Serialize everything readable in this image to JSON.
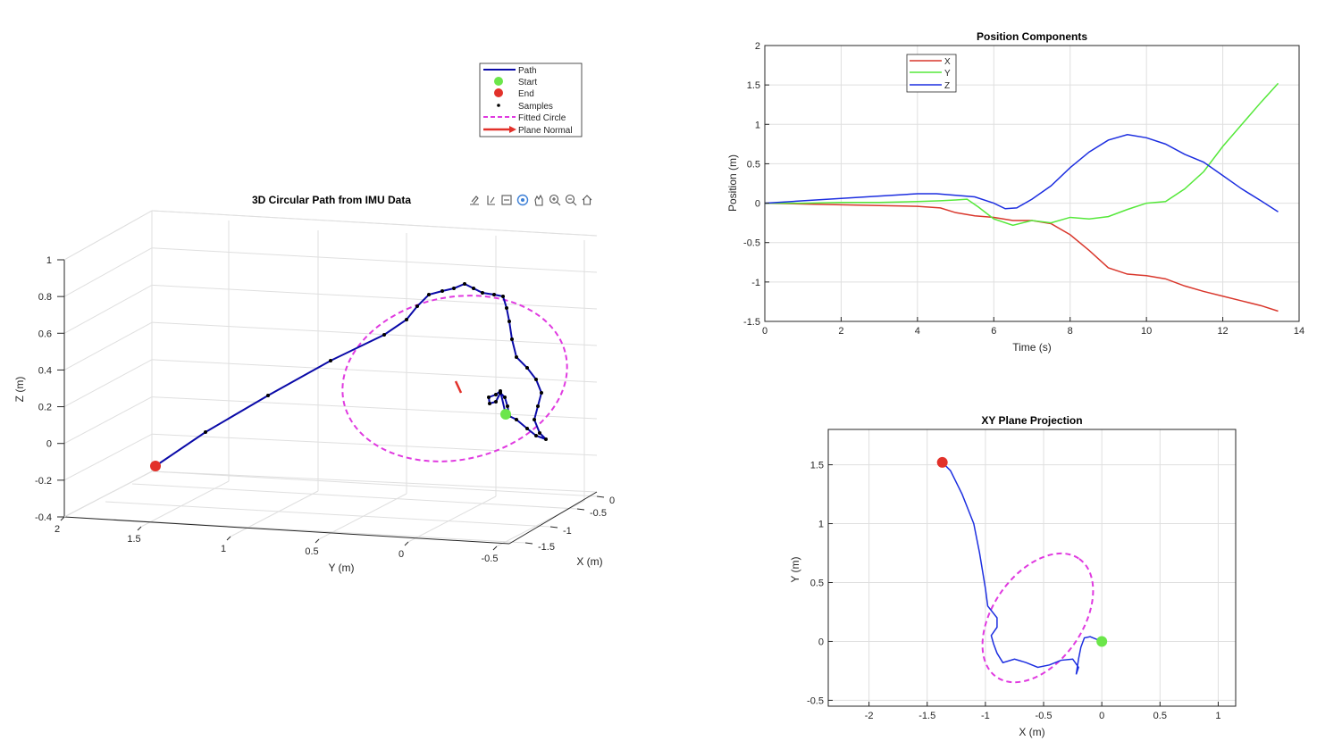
{
  "colors": {
    "path": "#0a0aa8",
    "start": "#6be64a",
    "end": "#e2312a",
    "samples": "#000000",
    "fitted": "#e03ae0",
    "normal": "#e2312a",
    "x": "#d9372c",
    "y": "#55e83a",
    "z": "#1c2ee0",
    "xy_path": "#1c2ee0"
  },
  "toolbar": {
    "icons": [
      "export-icon",
      "brush-icon",
      "datatip-icon",
      "rotate-icon",
      "pan-icon",
      "zoom-in-icon",
      "zoom-out-icon",
      "home-icon"
    ]
  },
  "chart_data": [
    {
      "type": "line",
      "title": "3D Circular Path from IMU Data",
      "xlabel": "X (m)",
      "ylabel": "Y (m)",
      "zlabel": "Z (m)",
      "zlim": [
        -0.4,
        1
      ],
      "z_ticks": [
        "-0.4",
        "-0.2",
        "0",
        "0.2",
        "0.4",
        "0.6",
        "0.8",
        "1"
      ],
      "y_ticks": [
        "2",
        "1.5",
        "1",
        "0.5",
        "0",
        "-0.5"
      ],
      "x_ticks": [
        "0",
        "-0.5",
        "-1",
        "-1.5"
      ],
      "legend": [
        "Path",
        "Start",
        "End",
        "Samples",
        "Fitted Circle",
        "Plane Normal"
      ],
      "legend_position": "top-right",
      "grid": true
    },
    {
      "type": "line",
      "title": "Position Components",
      "xlabel": "Time (s)",
      "ylabel": "Position (m)",
      "xlim": [
        0,
        14
      ],
      "ylim": [
        -1.5,
        2
      ],
      "x_ticks": [
        "0",
        "2",
        "4",
        "6",
        "8",
        "10",
        "12",
        "14"
      ],
      "y_ticks": [
        "-1.5",
        "-1",
        "-0.5",
        "0",
        "0.5",
        "1",
        "1.5",
        "2"
      ],
      "legend": [
        "X",
        "Y",
        "Z"
      ],
      "legend_position": "top-left",
      "grid": true,
      "series": [
        {
          "name": "X",
          "x": [
            0,
            1,
            2,
            3,
            4,
            4.6,
            5,
            5.5,
            6,
            6.5,
            7,
            7.5,
            8,
            8.5,
            9,
            9.5,
            10,
            10.5,
            11,
            11.5,
            12,
            12.5,
            13,
            13.45
          ],
          "y": [
            0,
            -0.01,
            -0.02,
            -0.03,
            -0.04,
            -0.06,
            -0.12,
            -0.16,
            -0.18,
            -0.22,
            -0.22,
            -0.26,
            -0.4,
            -0.6,
            -0.82,
            -0.9,
            -0.92,
            -0.96,
            -1.05,
            -1.12,
            -1.18,
            -1.24,
            -1.3,
            -1.37
          ]
        },
        {
          "name": "Y",
          "x": [
            0,
            1,
            2,
            3,
            4,
            4.6,
            5,
            5.3,
            5.6,
            6,
            6.5,
            7,
            7.5,
            8,
            8.5,
            9,
            9.5,
            10,
            10.5,
            11,
            11.5,
            12,
            12.5,
            13,
            13.45
          ],
          "y": [
            0,
            0,
            0.01,
            0.01,
            0.02,
            0.03,
            0.04,
            0.05,
            -0.05,
            -0.2,
            -0.28,
            -0.22,
            -0.25,
            -0.18,
            -0.2,
            -0.17,
            -0.08,
            0,
            0.02,
            0.18,
            0.4,
            0.72,
            1.0,
            1.28,
            1.52
          ]
        },
        {
          "name": "Z",
          "x": [
            0,
            1,
            2,
            3,
            4,
            4.5,
            5,
            5.5,
            6,
            6.3,
            6.6,
            7,
            7.5,
            8,
            8.5,
            9,
            9.5,
            10,
            10.5,
            11,
            11.5,
            12,
            12.5,
            13,
            13.45
          ],
          "y": [
            0,
            0.03,
            0.06,
            0.09,
            0.12,
            0.12,
            0.1,
            0.08,
            0.0,
            -0.07,
            -0.06,
            0.05,
            0.22,
            0.45,
            0.65,
            0.8,
            0.87,
            0.83,
            0.75,
            0.62,
            0.52,
            0.35,
            0.18,
            0.03,
            -0.11
          ]
        }
      ]
    },
    {
      "type": "line",
      "title": "XY Plane Projection",
      "xlabel": "X (m)",
      "ylabel": "Y (m)",
      "xlim": [
        -2.35,
        1.15
      ],
      "ylim": [
        -0.55,
        1.8
      ],
      "x_ticks": [
        "-2",
        "-1.5",
        "-1",
        "-0.5",
        "0",
        "0.5",
        "1"
      ],
      "y_ticks": [
        "-0.5",
        "0",
        "0.5",
        "1",
        "1.5"
      ],
      "grid": true,
      "path": {
        "x": [
          0,
          -0.05,
          -0.1,
          -0.15,
          -0.18,
          -0.2,
          -0.22,
          -0.2,
          -0.25,
          -0.35,
          -0.45,
          -0.55,
          -0.65,
          -0.75,
          -0.85,
          -0.9,
          -0.93,
          -0.95,
          -0.9,
          -0.9,
          -0.98,
          -1.0,
          -1.05,
          -1.1,
          -1.2,
          -1.3,
          -1.37
        ],
        "y": [
          0,
          0.02,
          0.04,
          0.03,
          -0.05,
          -0.15,
          -0.28,
          -0.22,
          -0.15,
          -0.16,
          -0.2,
          -0.22,
          -0.18,
          -0.15,
          -0.18,
          -0.1,
          -0.02,
          0.05,
          0.12,
          0.2,
          0.3,
          0.45,
          0.75,
          1.0,
          1.25,
          1.45,
          1.52
        ]
      },
      "start": {
        "x": 0,
        "y": 0
      },
      "end": {
        "x": -1.37,
        "y": 1.52
      },
      "fitted_circle": {
        "cx": -0.55,
        "cy": 0.2,
        "rx": 0.62,
        "ry": 0.38,
        "angle_deg": -55
      }
    }
  ]
}
